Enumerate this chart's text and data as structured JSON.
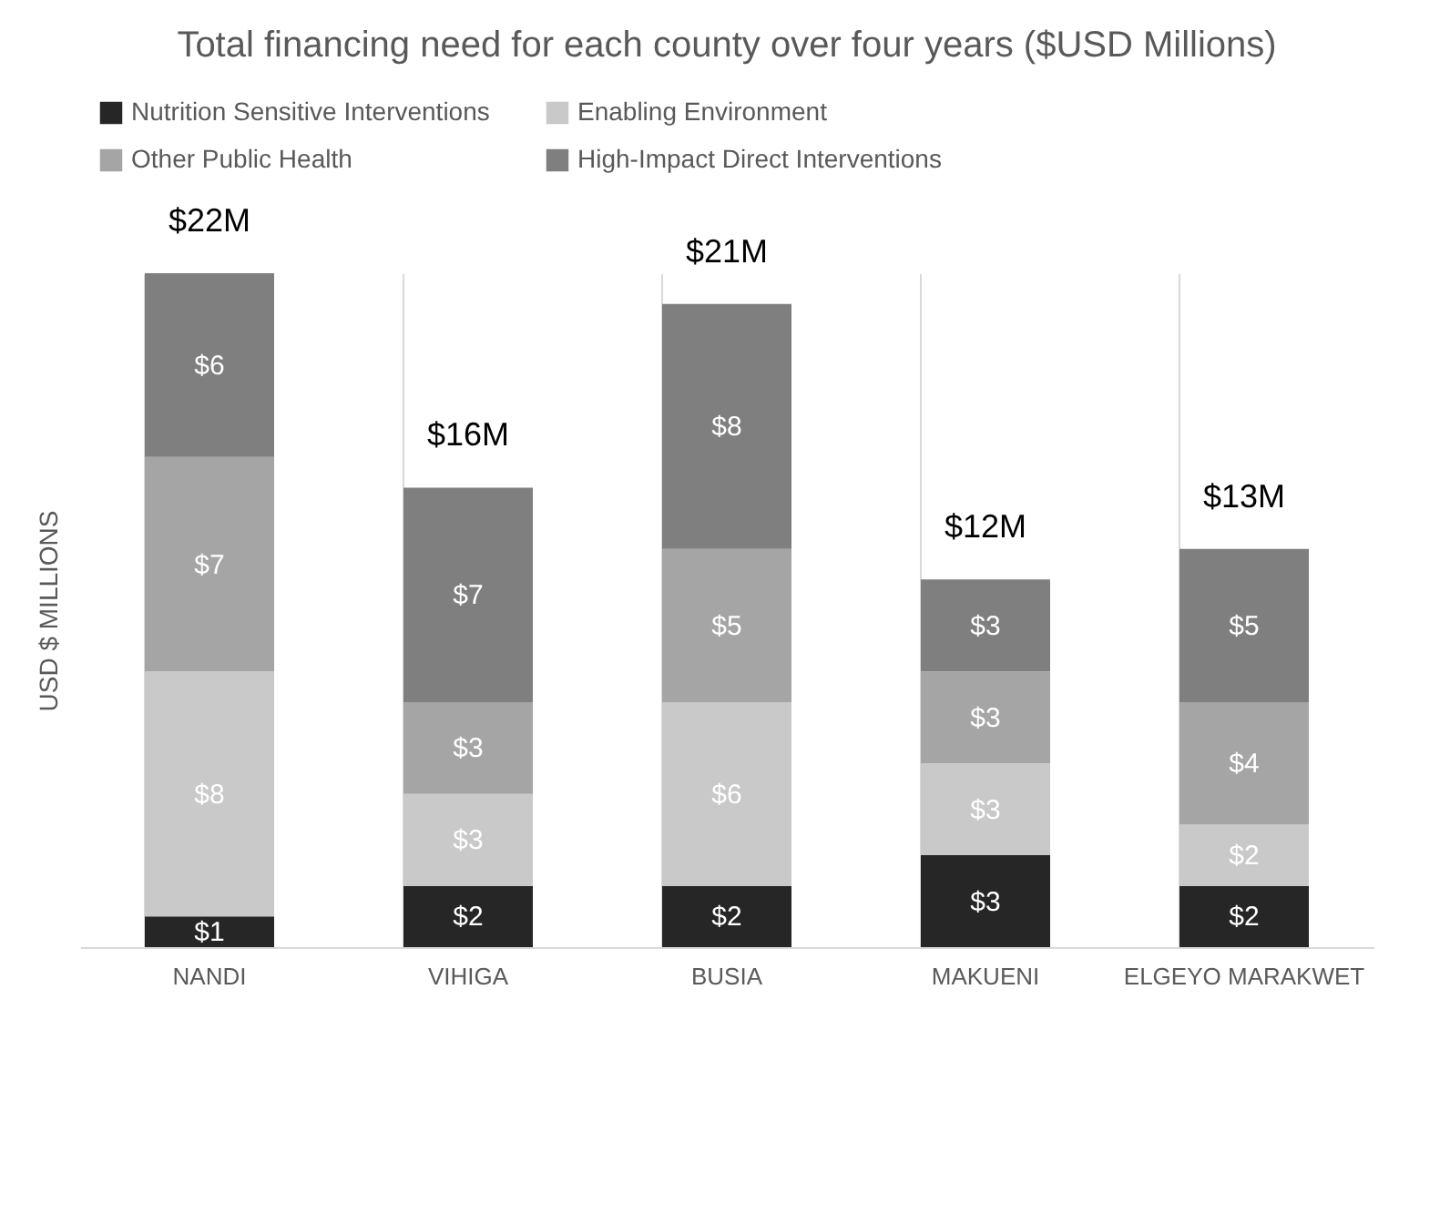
{
  "chart_data": {
    "type": "bar",
    "stacked": true,
    "title": "Total financing need for each county over four years ($USD Millions)",
    "ylabel": "USD $ MILLIONS",
    "categories": [
      "NANDI",
      "VIHIGA",
      "BUSIA",
      "MAKUENI",
      "ELGEYO MARAKWET"
    ],
    "series": [
      {
        "name": "Nutrition Sensitive Interventions",
        "color": "#262626",
        "values": [
          1,
          2,
          2,
          3,
          2
        ],
        "value_labels": [
          "$1",
          "$2",
          "$2",
          "$3",
          "$2"
        ]
      },
      {
        "name": "Enabling Environment",
        "color": "#c9c9c9",
        "values": [
          8,
          3,
          6,
          3,
          2
        ],
        "value_labels": [
          "$8",
          "$3",
          "$6",
          "$3",
          "$2"
        ]
      },
      {
        "name": "Other Public Health",
        "color": "#a5a5a5",
        "values": [
          7,
          3,
          5,
          3,
          4
        ],
        "value_labels": [
          "$7",
          "$3",
          "$5",
          "$3",
          "$4"
        ]
      },
      {
        "name": "High-Impact Direct Interventions",
        "color": "#7f7f7f",
        "values": [
          6,
          7,
          8,
          3,
          5
        ],
        "value_labels": [
          "$6",
          "$7",
          "$8",
          "$3",
          "$5"
        ]
      }
    ],
    "totals": [
      "$22M",
      "$16M",
      "$21M",
      "$12M",
      "$13M"
    ],
    "legend": "top",
    "grid": "x",
    "tick_labels": "x"
  }
}
